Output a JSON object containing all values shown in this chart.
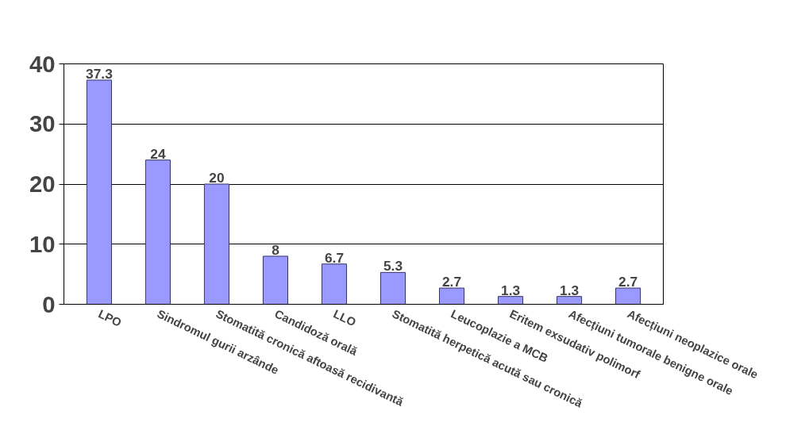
{
  "chart_data": {
    "type": "bar",
    "categories": [
      "LPO",
      "Sindromul gurii arzânde",
      "Stomatită cronică aftoasă recidivantă",
      "Candidoză orală",
      "LLO",
      "Stomatită herpetică acută sau cronică",
      "Leucoplazie a MCB",
      "Eritem exsudativ polimorf",
      "Afecțiuni tumorale benigne orale",
      "Afecțiuni neoplazice orale"
    ],
    "values": [
      37.3,
      24,
      20,
      8,
      6.7,
      5.3,
      2.7,
      1.3,
      1.3,
      2.7
    ],
    "color": "#9999ff",
    "ylim": [
      0,
      40
    ],
    "yticks": [
      0,
      10,
      20,
      30,
      40
    ],
    "grid": "y",
    "data_labels": true
  }
}
